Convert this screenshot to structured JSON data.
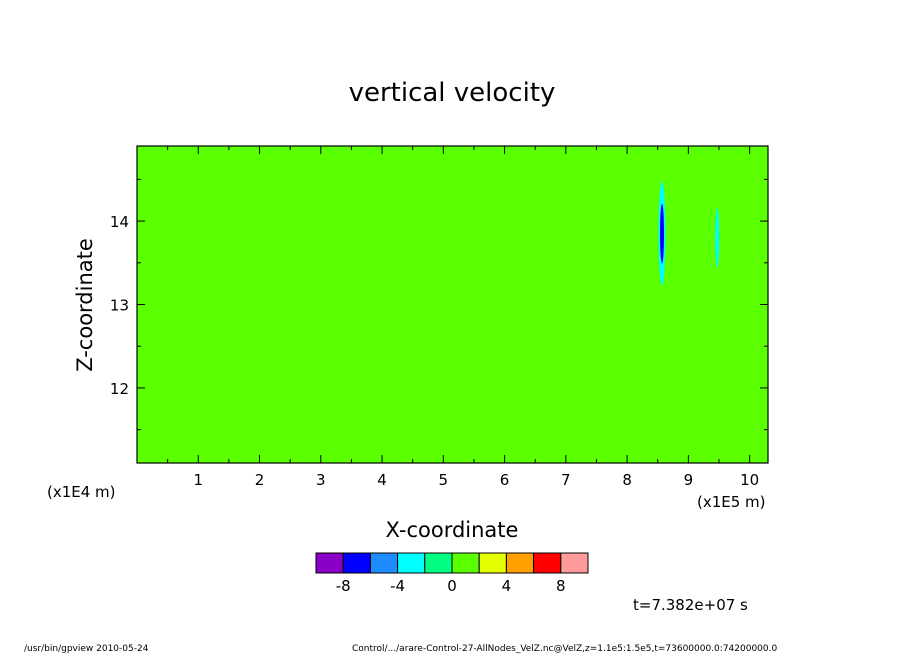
{
  "chart_data": {
    "type": "heatmap",
    "title": "vertical velocity",
    "xlabel": "X-coordinate",
    "ylabel": "Z-coordinate",
    "x_unit": "(x1E5 m)",
    "y_unit": "(x1E4 m)",
    "xlim": [
      0.0,
      10.3
    ],
    "ylim": [
      11.1,
      14.9
    ],
    "x_ticks": [
      1,
      2,
      3,
      4,
      5,
      6,
      7,
      8,
      9,
      10
    ],
    "y_ticks": [
      12,
      13,
      14
    ],
    "colorbar": {
      "levels": [
        -10,
        -8,
        -6,
        -4,
        -2,
        0,
        2,
        4,
        6,
        8,
        10
      ],
      "colors": [
        "#8a00c8",
        "#0000ff",
        "#1e8cff",
        "#00ffff",
        "#00ff82",
        "#5aff00",
        "#e6ff00",
        "#ffa000",
        "#ff0000",
        "#ff9a9a"
      ],
      "tick_labels": [
        "-8",
        "-4",
        "0",
        "4",
        "8"
      ],
      "tick_values": [
        -8,
        -4,
        0,
        4,
        8
      ]
    },
    "features": [
      {
        "x": 8.57,
        "z": 13.85,
        "min_value": -8
      },
      {
        "x": 9.47,
        "z": 13.8,
        "min_value": -4
      }
    ]
  },
  "time_label": "t=7.382e+07 s",
  "footer_left": "/usr/bin/gpview   2010-05-24",
  "footer_right": "Control/.../arare-Control-27-AllNodes_VelZ.nc@VelZ,z=1.1e5:1.5e5,t=73600000.0:74200000.0"
}
